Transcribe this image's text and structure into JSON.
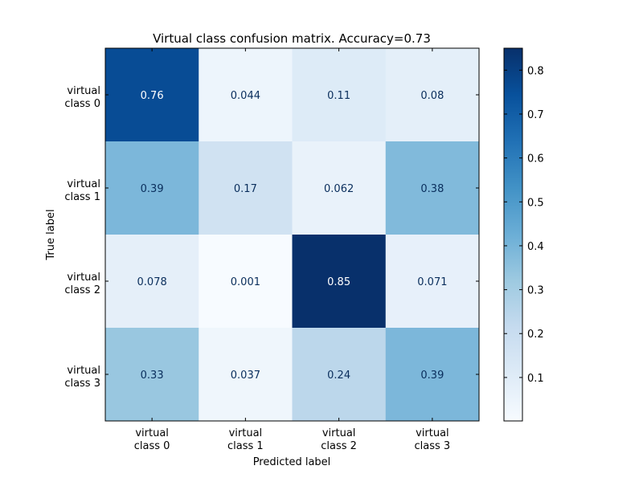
{
  "chart_data": {
    "type": "heatmap",
    "title": "Virtual class confusion matrix. Accuracy=0.73",
    "xlabel": "Predicted label",
    "ylabel": "True label",
    "x_categories": [
      [
        "virtual",
        "class 0"
      ],
      [
        "virtual",
        "class 1"
      ],
      [
        "virtual",
        "class 2"
      ],
      [
        "virtual",
        "class 3"
      ]
    ],
    "y_categories": [
      [
        "virtual",
        "class 0"
      ],
      [
        "virtual",
        "class 1"
      ],
      [
        "virtual",
        "class 2"
      ],
      [
        "virtual",
        "class 3"
      ]
    ],
    "values": [
      [
        0.76,
        0.044,
        0.11,
        0.08
      ],
      [
        0.39,
        0.17,
        0.062,
        0.38
      ],
      [
        0.078,
        0.001,
        0.85,
        0.071
      ],
      [
        0.33,
        0.037,
        0.24,
        0.39
      ]
    ],
    "value_labels": [
      [
        "0.76",
        "0.044",
        "0.11",
        "0.08"
      ],
      [
        "0.39",
        "0.17",
        "0.062",
        "0.38"
      ],
      [
        "0.078",
        "0.001",
        "0.85",
        "0.071"
      ],
      [
        "0.33",
        "0.037",
        "0.24",
        "0.39"
      ]
    ],
    "colormap": "Blues",
    "colorbar": {
      "range": [
        0.001,
        0.85
      ],
      "ticks": [
        0.1,
        0.2,
        0.3,
        0.4,
        0.5,
        0.6,
        0.7,
        0.8
      ],
      "tick_labels": [
        "0.1",
        "0.2",
        "0.3",
        "0.4",
        "0.5",
        "0.6",
        "0.7",
        "0.8"
      ]
    },
    "grid": false
  }
}
